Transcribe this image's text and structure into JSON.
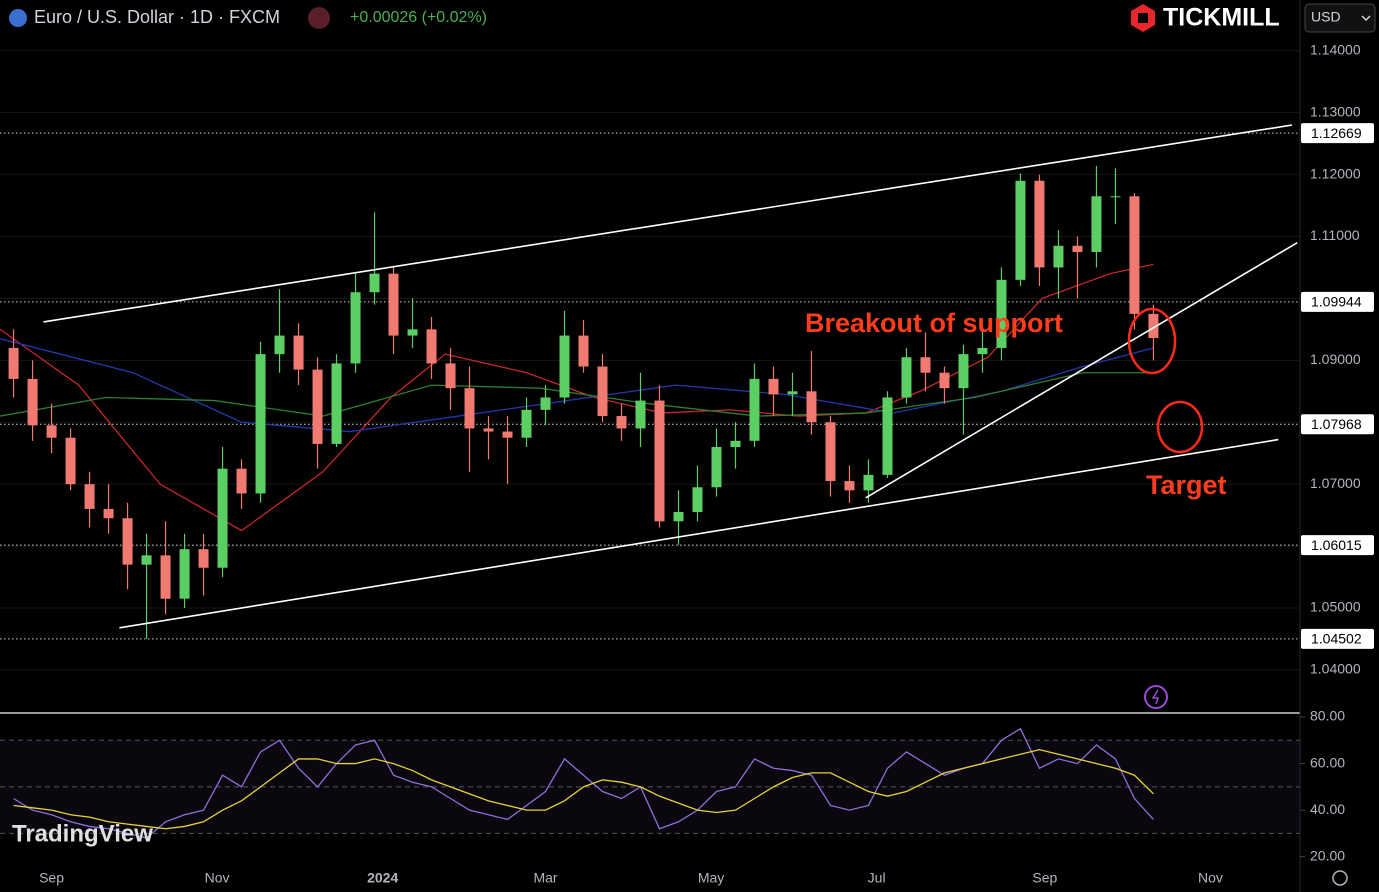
{
  "header": {
    "symbol": "Euro / U.S. Dollar · 1D · FXCM",
    "change": "+0.00026 (+0.02%)",
    "broker": "TICKMILL",
    "currency": "USD",
    "watermark": "TradingView"
  },
  "chart_data": [
    {
      "type": "candlestick",
      "annotations": [
        "Breakout of support",
        "Target"
      ],
      "xlim": [
        -19,
        460
      ],
      "xticks": [
        {
          "value": 0,
          "label": "Sep"
        },
        {
          "value": 61,
          "label": "Nov"
        },
        {
          "value": 122,
          "label": "2024"
        },
        {
          "value": 182,
          "label": "Mar"
        },
        {
          "value": 243,
          "label": "May"
        },
        {
          "value": 304,
          "label": "Jul"
        },
        {
          "value": 366,
          "label": "Sep"
        },
        {
          "value": 427,
          "label": "Nov"
        }
      ],
      "ylim": [
        1.0332,
        1.1482
      ],
      "yticks": [
        {
          "value": 1.04,
          "label": "1.04000"
        },
        {
          "value": 1.05,
          "label": "1.05000"
        },
        {
          "value": 1.06,
          "label": "1.06000"
        },
        {
          "value": 1.07,
          "label": "1.07000"
        },
        {
          "value": 1.08,
          "label": "1.08000"
        },
        {
          "value": 1.09,
          "label": "1.09000"
        },
        {
          "value": 1.1,
          "label": "1.10000"
        },
        {
          "value": 1.11,
          "label": "1.11000"
        },
        {
          "value": 1.12,
          "label": "1.12000"
        },
        {
          "value": 1.13,
          "label": "1.13000"
        },
        {
          "value": 1.14,
          "label": "1.14000"
        }
      ],
      "levels": [
        1.12669,
        1.09944,
        1.07968,
        1.06015,
        1.04502
      ],
      "up_color": "#5ccf64",
      "down_color": "#f07a72",
      "x": [
        -14,
        -7,
        0,
        7,
        14,
        21,
        28,
        35,
        42,
        49,
        56,
        63,
        70,
        77,
        84,
        91,
        98,
        105,
        112,
        119,
        126,
        133,
        140,
        147,
        154,
        161,
        168,
        175,
        182,
        189,
        196,
        203,
        210,
        217,
        224,
        231,
        238,
        245,
        252,
        259,
        266,
        273,
        280,
        287,
        294,
        301,
        308,
        315,
        322,
        329,
        336,
        343,
        350,
        357,
        364,
        371,
        378,
        385,
        392,
        399,
        406
      ],
      "open": [
        1.092,
        1.087,
        1.0795,
        1.0775,
        1.07,
        1.066,
        1.0645,
        1.057,
        1.0585,
        1.0515,
        1.0595,
        1.0565,
        1.0725,
        1.0685,
        1.091,
        1.094,
        1.0885,
        1.0765,
        1.0895,
        1.101,
        1.104,
        1.094,
        1.095,
        1.0895,
        1.0855,
        1.079,
        1.0785,
        1.0775,
        1.082,
        1.084,
        1.094,
        1.089,
        1.081,
        1.079,
        1.0835,
        1.064,
        1.0655,
        1.0695,
        1.076,
        1.077,
        1.087,
        1.0845,
        1.085,
        1.08,
        1.0705,
        1.069,
        1.0715,
        1.084,
        1.0905,
        1.088,
        1.0855,
        1.091,
        1.092,
        1.103,
        1.119,
        1.105,
        1.1085,
        1.1075,
        1.1165,
        1.1165,
        1.0975
      ],
      "high": [
        1.095,
        1.09,
        1.083,
        1.079,
        1.072,
        1.07,
        1.067,
        1.062,
        1.064,
        1.062,
        1.062,
        1.076,
        1.074,
        1.093,
        1.1015,
        1.096,
        1.0905,
        1.091,
        1.104,
        1.1139,
        1.105,
        1.1,
        1.097,
        1.092,
        1.089,
        1.081,
        1.081,
        1.084,
        1.086,
        1.098,
        1.0965,
        1.091,
        1.083,
        1.088,
        1.086,
        1.069,
        1.073,
        1.079,
        1.08,
        1.0895,
        1.089,
        1.088,
        1.0915,
        1.081,
        1.073,
        1.074,
        1.085,
        1.092,
        1.0945,
        1.089,
        1.0925,
        1.095,
        1.105,
        1.1202,
        1.12,
        1.111,
        1.11,
        1.1214,
        1.121,
        1.117,
        1.099
      ],
      "low": [
        1.084,
        1.077,
        1.075,
        1.069,
        1.063,
        1.062,
        1.053,
        1.045,
        1.049,
        1.05,
        1.052,
        1.055,
        1.066,
        1.067,
        1.088,
        1.086,
        1.0725,
        1.076,
        1.088,
        1.099,
        1.091,
        1.092,
        1.087,
        1.082,
        1.072,
        1.074,
        1.07,
        1.076,
        1.0795,
        1.083,
        1.088,
        1.08,
        1.077,
        1.076,
        1.063,
        1.0602,
        1.064,
        1.068,
        1.0725,
        1.076,
        1.081,
        1.081,
        1.078,
        1.068,
        1.067,
        1.067,
        1.071,
        1.083,
        1.085,
        1.083,
        1.078,
        1.088,
        1.09,
        1.102,
        1.102,
        1.1,
        1.1,
        1.105,
        1.112,
        1.095,
        1.09
      ],
      "close": [
        1.087,
        1.0795,
        1.0775,
        1.07,
        1.066,
        1.0645,
        1.057,
        1.0585,
        1.0515,
        1.0595,
        1.0565,
        1.0725,
        1.0685,
        1.091,
        1.094,
        1.0885,
        1.0765,
        1.0895,
        1.101,
        1.104,
        1.094,
        1.095,
        1.0895,
        1.0855,
        1.079,
        1.0785,
        1.0775,
        1.082,
        1.084,
        1.094,
        1.089,
        1.081,
        1.079,
        1.0835,
        1.064,
        1.0655,
        1.0695,
        1.076,
        1.077,
        1.087,
        1.0845,
        1.085,
        1.08,
        1.0705,
        1.069,
        1.0715,
        1.084,
        1.0905,
        1.088,
        1.0855,
        1.091,
        1.092,
        1.103,
        1.119,
        1.105,
        1.1085,
        1.1075,
        1.1165,
        1.1165,
        1.0975,
        1.0936
      ],
      "lines": [
        {
          "color": "#c62828",
          "x": [
            -19,
            10,
            40,
            70,
            100,
            125,
            145,
            175,
            200,
            225,
            250,
            275,
            300,
            320,
            345,
            365,
            390,
            406
          ],
          "values": [
            1.095,
            1.086,
            1.07,
            1.0625,
            1.072,
            1.084,
            1.091,
            1.088,
            1.084,
            1.0815,
            1.082,
            1.081,
            1.0815,
            1.085,
            1.0905,
            1.1,
            1.104,
            1.1055
          ]
        },
        {
          "color": "#2438a8",
          "x": [
            -19,
            30,
            70,
            110,
            150,
            190,
            230,
            270,
            310,
            350,
            380,
            406
          ],
          "values": [
            1.0935,
            1.088,
            1.08,
            1.0785,
            1.081,
            1.0835,
            1.086,
            1.0845,
            1.0815,
            1.085,
            1.089,
            1.092
          ]
        },
        {
          "color": "#2e7d32",
          "x": [
            -19,
            20,
            60,
            100,
            140,
            180,
            220,
            260,
            300,
            340,
            380,
            406
          ],
          "values": [
            1.081,
            1.084,
            1.0835,
            1.081,
            1.086,
            1.0855,
            1.083,
            1.081,
            1.0815,
            1.084,
            1.088,
            1.088
          ]
        }
      ],
      "trendlines": [
        {
          "x": [
            -3,
            457
          ],
          "values": [
            1.0962,
            1.128
          ]
        },
        {
          "x": [
            25,
            452
          ],
          "values": [
            1.0468,
            1.0772
          ]
        },
        {
          "x": [
            300,
            459
          ],
          "values": [
            1.0678,
            1.109
          ]
        }
      ]
    },
    {
      "type": "line",
      "ylim": [
        16,
        81.3
      ],
      "yticks": [
        {
          "value": 80,
          "label": "80.00"
        },
        {
          "value": 60,
          "label": "60.00"
        },
        {
          "value": 40,
          "label": "40.00"
        },
        {
          "value": 20,
          "label": "20.00"
        }
      ],
      "bands": [
        70,
        50,
        30
      ],
      "x": [
        -14,
        -7,
        0,
        7,
        14,
        21,
        28,
        35,
        42,
        49,
        56,
        63,
        70,
        77,
        84,
        91,
        98,
        105,
        112,
        119,
        126,
        133,
        140,
        147,
        154,
        161,
        168,
        175,
        182,
        189,
        196,
        203,
        210,
        217,
        224,
        231,
        238,
        245,
        252,
        259,
        266,
        273,
        280,
        287,
        294,
        301,
        308,
        315,
        322,
        329,
        336,
        343,
        350,
        357,
        364,
        371,
        378,
        385,
        392,
        399,
        406
      ],
      "series": [
        {
          "color": "#8e6fd8",
          "values": [
            45,
            40,
            38,
            35,
            33,
            32,
            30,
            28,
            35,
            38,
            40,
            55,
            50,
            65,
            70,
            58,
            50,
            60,
            68,
            70,
            55,
            52,
            50,
            45,
            40,
            38,
            36,
            42,
            48,
            62,
            55,
            48,
            45,
            50,
            32,
            35,
            40,
            48,
            50,
            62,
            58,
            57,
            55,
            42,
            40,
            42,
            58,
            65,
            60,
            55,
            58,
            60,
            70,
            75,
            58,
            62,
            60,
            68,
            62,
            45,
            36
          ]
        },
        {
          "color": "#e6d23a",
          "values": [
            42,
            41,
            40,
            38,
            37,
            35,
            34,
            33,
            32,
            33,
            35,
            40,
            44,
            50,
            56,
            62,
            62,
            60,
            60,
            62,
            60,
            57,
            53,
            50,
            47,
            44,
            42,
            40,
            40,
            44,
            50,
            53,
            52,
            50,
            46,
            43,
            40,
            39,
            40,
            45,
            50,
            54,
            56,
            56,
            52,
            48,
            46,
            48,
            52,
            56,
            58,
            60,
            62,
            64,
            66,
            64,
            62,
            60,
            58,
            55,
            47
          ]
        }
      ]
    }
  ]
}
